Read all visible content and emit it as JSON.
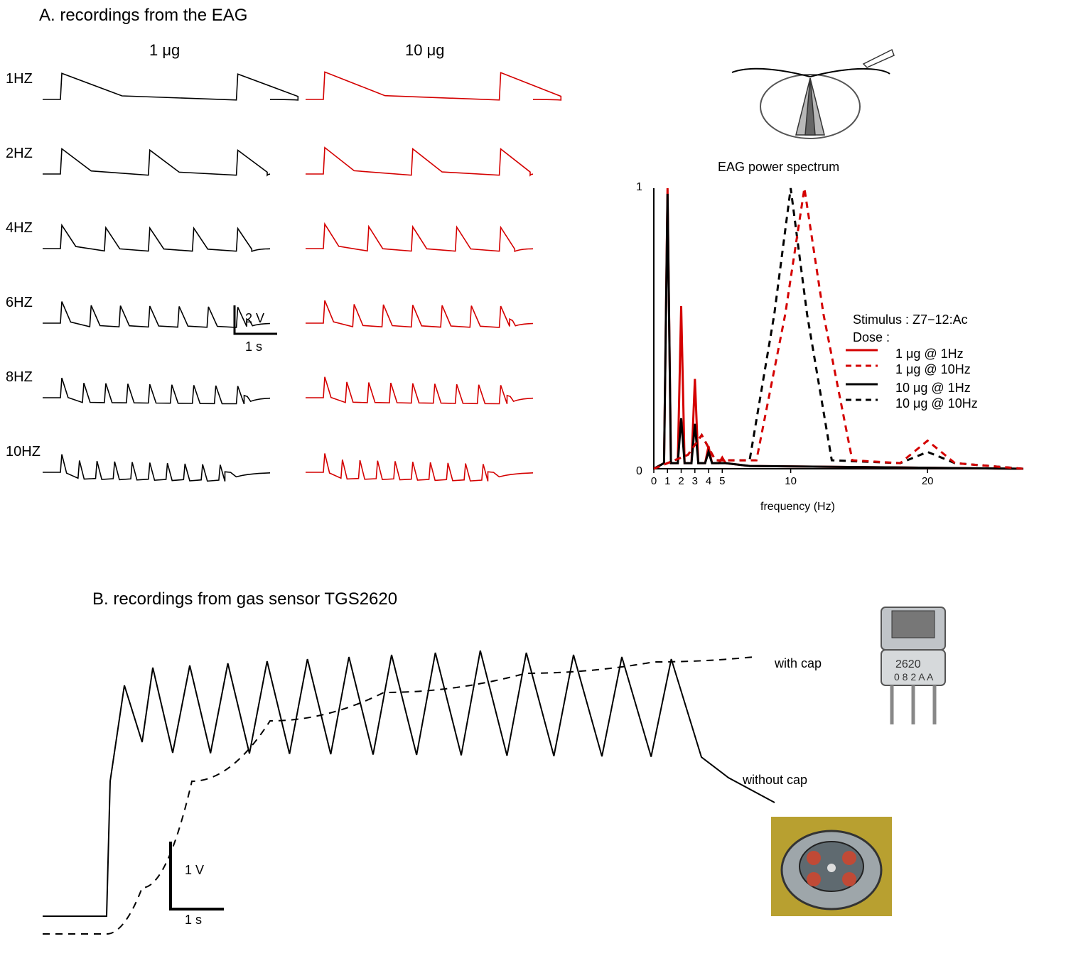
{
  "panelA": {
    "title": "A. recordings from the EAG",
    "dose_labels": [
      "1 μg",
      "10 μg"
    ],
    "freq_labels": [
      "1HZ",
      "2HZ",
      "4HZ",
      "6HZ",
      "8HZ",
      "10HZ"
    ],
    "trace_colors": {
      "low": "#000000",
      "high": "#d40000"
    },
    "scalebar": {
      "x_label": "1 s",
      "y_label": "2 V",
      "color": "#000000"
    },
    "spectrum": {
      "title": "EAG power spectrum",
      "ylim": [
        0,
        1
      ],
      "yticks": [
        "0",
        "1"
      ],
      "xticks": [
        "0",
        "1",
        "2",
        "3",
        "4",
        "5",
        "10",
        "20"
      ],
      "xlabel": "frequency (Hz)",
      "stimulus_label": "Stimulus : Z7−12:Ac",
      "dose_label": "Dose :",
      "legend": [
        {
          "label": "1 μg @ 1Hz",
          "color": "#d40000",
          "dash": "none"
        },
        {
          "label": "1 μg @ 10Hz",
          "color": "#d40000",
          "dash": "8,6"
        },
        {
          "label": "10 μg @ 1Hz",
          "color": "#000000",
          "dash": "none"
        },
        {
          "label": "10 μg @ 10Hz",
          "color": "#000000",
          "dash": "8,6"
        }
      ],
      "curves": {
        "red_solid": {
          "1": 1.0,
          "2": 0.58,
          "3": 0.32,
          "4": 0.08,
          "5": 0.04
        },
        "black_solid": {
          "1": 0.98,
          "2": 0.18,
          "3": 0.16,
          "4": 0.06,
          "5": 0.02
        },
        "red_dashed": {
          "peak_x": 11,
          "peak_y": 1.0,
          "width": 3.5,
          "tail_x": 20,
          "tail_y": 0.1
        },
        "black_dashed": {
          "peak_x": 10,
          "peak_y": 1.0,
          "width": 3.0,
          "tail_x": 20,
          "tail_y": 0.06
        }
      },
      "bg": "#ffffff",
      "axis_color": "#000000",
      "grid_color": "#e0e0e0"
    }
  },
  "panelB": {
    "title": "B. recordings from gas sensor TGS2620",
    "scalebar": {
      "x_label": "1 s",
      "y_label": "1 V",
      "color": "#000000"
    },
    "line_labels": {
      "cap": "with cap",
      "nocap": "without cap"
    },
    "trace_color": "#000000"
  },
  "font": {
    "panel_size": 24,
    "col_size": 22,
    "freq_size": 20,
    "small_size": 18,
    "axis_size": 16
  }
}
